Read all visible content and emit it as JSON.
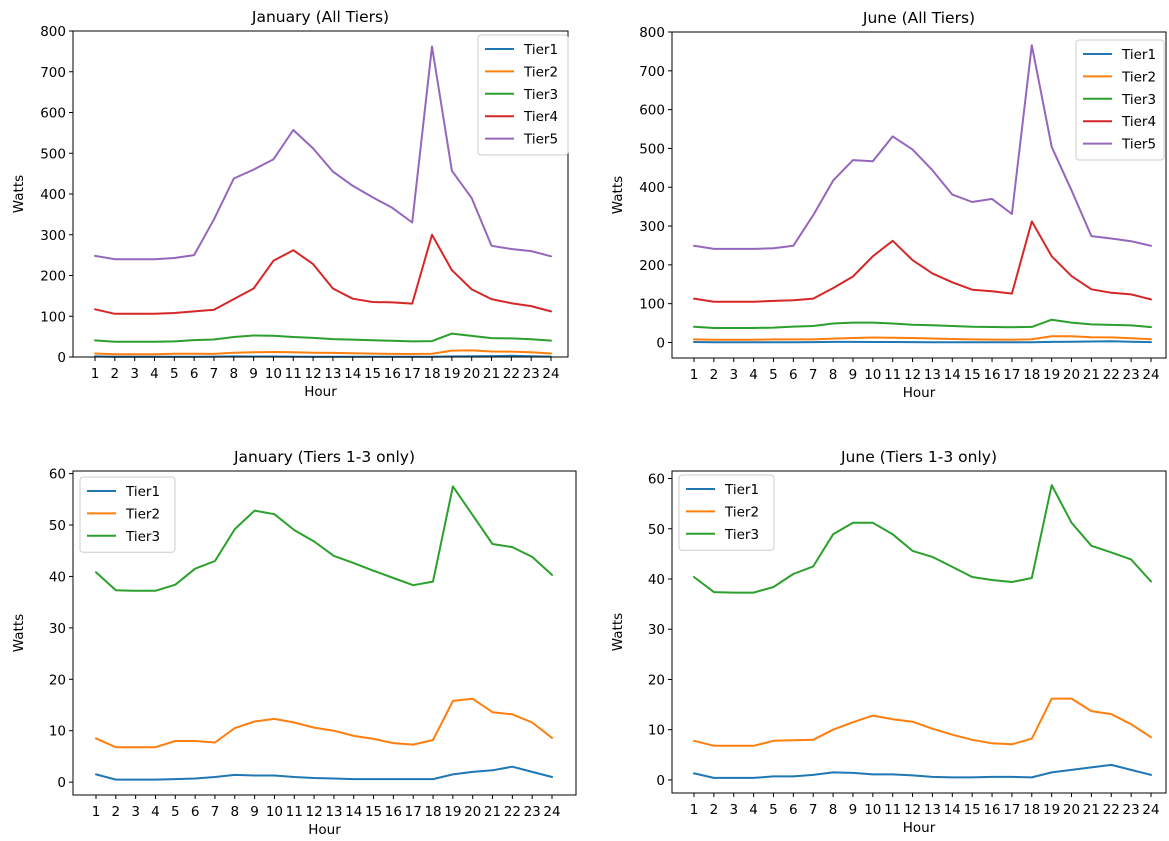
{
  "colors": {
    "Tier1": "#1f77b4",
    "Tier2": "#ff7f0e",
    "Tier3": "#2ca02c",
    "Tier4": "#d62728",
    "Tier5": "#9467bd",
    "axis": "#000000",
    "background": "#ffffff"
  },
  "chart_data": [
    {
      "type": "line",
      "title": "January (All Tiers)",
      "xlabel": "Hour",
      "ylabel": "Watts",
      "x": [
        1,
        2,
        3,
        4,
        5,
        6,
        7,
        8,
        9,
        10,
        11,
        12,
        13,
        14,
        15,
        16,
        17,
        18,
        19,
        20,
        21,
        22,
        23,
        24
      ],
      "ylim": [
        0,
        800
      ],
      "yticks": [
        0,
        100,
        200,
        300,
        400,
        500,
        600,
        700,
        800
      ],
      "grid": false,
      "legend": "top-right",
      "series": [
        {
          "name": "Tier1",
          "values": [
            1.5,
            0.5,
            0.5,
            0.5,
            0.6,
            0.7,
            1.0,
            1.4,
            1.3,
            1.3,
            1.0,
            0.8,
            0.7,
            0.6,
            0.6,
            0.6,
            0.6,
            0.6,
            1.5,
            2.0,
            2.3,
            3.0,
            2.0,
            1.0
          ]
        },
        {
          "name": "Tier2",
          "values": [
            8.5,
            6.8,
            6.8,
            6.8,
            8.0,
            8.0,
            7.7,
            10.5,
            11.8,
            12.3,
            11.6,
            10.6,
            10.0,
            9.0,
            8.4,
            7.6,
            7.3,
            8.2,
            15.8,
            16.2,
            13.6,
            13.2,
            11.6,
            8.6
          ]
        },
        {
          "name": "Tier3",
          "values": [
            40.8,
            37.3,
            37.2,
            37.2,
            38.4,
            41.5,
            43.0,
            49.2,
            52.8,
            52.1,
            49.0,
            46.8,
            44.0,
            42.6,
            41.1,
            39.7,
            38.3,
            39.0,
            57.5,
            51.9,
            46.3,
            45.7,
            43.8,
            40.3
          ]
        },
        {
          "name": "Tier4",
          "values": [
            117,
            106,
            106,
            106,
            108,
            112,
            116,
            142,
            168,
            236,
            262,
            228,
            168,
            143,
            135,
            134,
            131,
            300,
            213,
            166,
            142,
            132,
            125,
            112
          ]
        },
        {
          "name": "Tier5",
          "values": [
            248,
            240,
            240,
            240,
            243,
            250,
            338,
            438,
            460,
            485,
            557,
            512,
            455,
            420,
            392,
            366,
            330,
            762,
            457,
            390,
            273,
            265,
            260,
            247
          ]
        }
      ]
    },
    {
      "type": "line",
      "title": "June (All Tiers)",
      "xlabel": "Hour",
      "ylabel": "Watts",
      "x": [
        1,
        2,
        3,
        4,
        5,
        6,
        7,
        8,
        9,
        10,
        11,
        12,
        13,
        14,
        15,
        16,
        17,
        18,
        19,
        20,
        21,
        22,
        23,
        24
      ],
      "ylim": [
        -40,
        800
      ],
      "yticks": [
        0,
        100,
        200,
        300,
        400,
        500,
        600,
        700,
        800
      ],
      "grid": false,
      "legend": "top-right",
      "series": [
        {
          "name": "Tier1",
          "values": [
            1.3,
            0.4,
            0.4,
            0.4,
            0.7,
            0.7,
            1.0,
            1.5,
            1.4,
            1.1,
            1.1,
            0.9,
            0.6,
            0.5,
            0.5,
            0.6,
            0.6,
            0.5,
            1.5,
            2.0,
            2.5,
            3.0,
            2.0,
            1.0
          ]
        },
        {
          "name": "Tier2",
          "values": [
            7.8,
            6.8,
            6.8,
            6.8,
            7.8,
            7.9,
            8.0,
            10.0,
            11.5,
            12.8,
            12.1,
            11.6,
            10.2,
            9.0,
            8.0,
            7.3,
            7.1,
            8.2,
            16.2,
            16.2,
            13.7,
            13.1,
            11.1,
            8.5
          ]
        },
        {
          "name": "Tier3",
          "values": [
            40.4,
            37.4,
            37.3,
            37.3,
            38.4,
            41.0,
            42.5,
            48.9,
            51.2,
            51.2,
            48.9,
            45.6,
            44.4,
            42.4,
            40.4,
            39.8,
            39.4,
            40.2,
            58.7,
            51.2,
            46.6,
            45.3,
            43.9,
            39.5
          ]
        },
        {
          "name": "Tier4",
          "values": [
            113,
            105,
            105,
            105,
            107,
            109,
            113,
            140,
            170,
            222,
            262,
            212,
            178,
            155,
            136,
            132,
            126,
            312,
            222,
            171,
            137,
            128,
            124,
            111
          ]
        },
        {
          "name": "Tier5",
          "values": [
            249,
            241,
            241,
            241,
            243,
            249,
            328,
            417,
            470,
            467,
            531,
            497,
            444,
            381,
            362,
            370,
            331,
            766,
            504,
            392,
            274,
            268,
            261,
            249
          ]
        }
      ]
    },
    {
      "type": "line",
      "title": "January (Tiers 1-3 only)",
      "xlabel": "Hour",
      "ylabel": "Watts",
      "x": [
        1,
        2,
        3,
        4,
        5,
        6,
        7,
        8,
        9,
        10,
        11,
        12,
        13,
        14,
        15,
        16,
        17,
        18,
        19,
        20,
        21,
        22,
        23,
        24
      ],
      "ylim": [
        -2.5,
        60.5
      ],
      "yticks": [
        0,
        10,
        20,
        30,
        40,
        50,
        60
      ],
      "grid": false,
      "legend": "top-left",
      "series": [
        {
          "name": "Tier1",
          "values": [
            1.5,
            0.5,
            0.5,
            0.5,
            0.6,
            0.7,
            1.0,
            1.4,
            1.3,
            1.3,
            1.0,
            0.8,
            0.7,
            0.6,
            0.6,
            0.6,
            0.6,
            0.6,
            1.5,
            2.0,
            2.3,
            3.0,
            2.0,
            1.0
          ]
        },
        {
          "name": "Tier2",
          "values": [
            8.5,
            6.8,
            6.8,
            6.8,
            8.0,
            8.0,
            7.7,
            10.5,
            11.8,
            12.3,
            11.6,
            10.6,
            10.0,
            9.0,
            8.4,
            7.6,
            7.3,
            8.2,
            15.8,
            16.2,
            13.6,
            13.2,
            11.6,
            8.6
          ]
        },
        {
          "name": "Tier3",
          "values": [
            40.8,
            37.3,
            37.2,
            37.2,
            38.4,
            41.5,
            43.0,
            49.2,
            52.8,
            52.1,
            49.0,
            46.8,
            44.0,
            42.6,
            41.1,
            39.7,
            38.3,
            39.0,
            57.5,
            51.9,
            46.3,
            45.7,
            43.8,
            40.3
          ]
        }
      ]
    },
    {
      "type": "line",
      "title": "June (Tiers 1-3 only)",
      "xlabel": "Hour",
      "ylabel": "Watts",
      "x": [
        1,
        2,
        3,
        4,
        5,
        6,
        7,
        8,
        9,
        10,
        11,
        12,
        13,
        14,
        15,
        16,
        17,
        18,
        19,
        20,
        21,
        22,
        23,
        24
      ],
      "ylim": [
        -2.6,
        61.5
      ],
      "yticks": [
        0,
        10,
        20,
        30,
        40,
        50,
        60
      ],
      "grid": false,
      "legend": "top-left",
      "series": [
        {
          "name": "Tier1",
          "values": [
            1.3,
            0.4,
            0.4,
            0.4,
            0.7,
            0.7,
            1.0,
            1.5,
            1.4,
            1.1,
            1.1,
            0.9,
            0.6,
            0.5,
            0.5,
            0.6,
            0.6,
            0.5,
            1.5,
            2.0,
            2.5,
            3.0,
            2.0,
            1.0
          ]
        },
        {
          "name": "Tier2",
          "values": [
            7.8,
            6.8,
            6.8,
            6.8,
            7.8,
            7.9,
            8.0,
            10.0,
            11.5,
            12.8,
            12.1,
            11.6,
            10.2,
            9.0,
            8.0,
            7.3,
            7.1,
            8.2,
            16.2,
            16.2,
            13.7,
            13.1,
            11.1,
            8.5
          ]
        },
        {
          "name": "Tier3",
          "values": [
            40.4,
            37.4,
            37.3,
            37.3,
            38.4,
            41.0,
            42.5,
            48.9,
            51.2,
            51.2,
            48.9,
            45.6,
            44.4,
            42.4,
            40.4,
            39.8,
            39.4,
            40.2,
            58.7,
            51.2,
            46.6,
            45.3,
            43.9,
            39.5
          ]
        }
      ]
    }
  ]
}
